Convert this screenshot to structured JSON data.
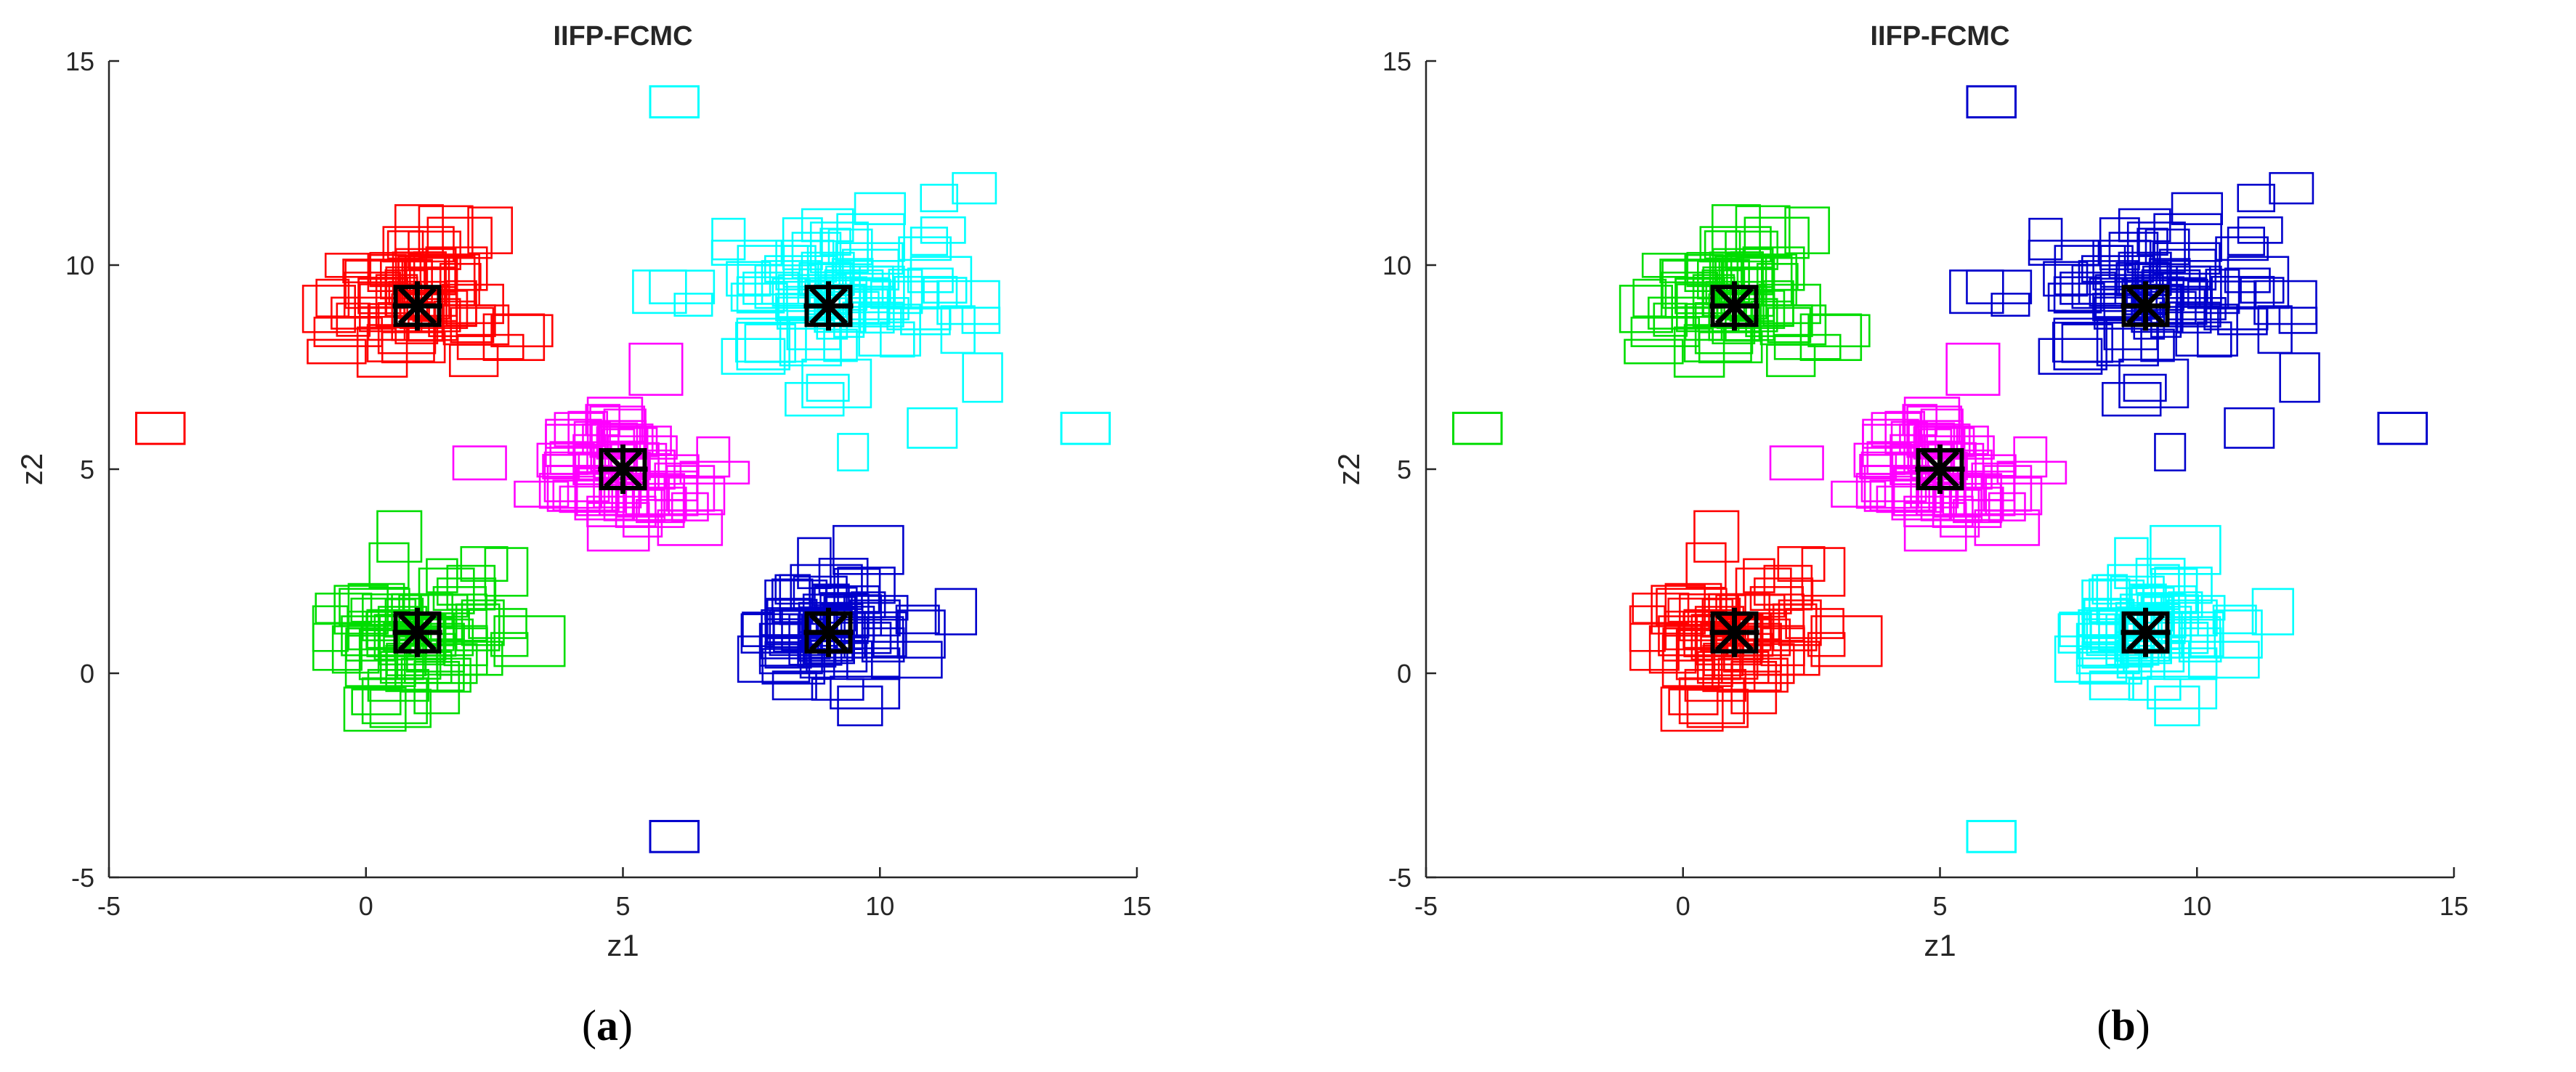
{
  "captions": {
    "a_open": "(",
    "a_letter": "a",
    "a_close": ")",
    "b_open": "(",
    "b_letter": "b",
    "b_close": ")"
  },
  "chart_data": [
    {
      "type": "scatter",
      "title": "IIFP-FCMC",
      "xlabel": "z1",
      "ylabel": "z2",
      "xlim": [
        -5,
        15
      ],
      "ylim": [
        -5,
        15
      ],
      "xticks": [
        "-5",
        "0",
        "5",
        "10",
        "15"
      ],
      "yticks": [
        "-5",
        "0",
        "5",
        "10",
        "15"
      ],
      "grid": false,
      "marker": "interval-rectangle",
      "clusters": [
        {
          "color": "#ff0000",
          "center": [
            1,
            9
          ],
          "spread": [
            0.9,
            0.8
          ],
          "points": 60
        },
        {
          "color": "#00ffff",
          "center": [
            9,
            9
          ],
          "spread": [
            1.3,
            1.1
          ],
          "points": 80
        },
        {
          "color": "#ff00ff",
          "center": [
            5,
            5
          ],
          "spread": [
            0.8,
            0.8
          ],
          "points": 60
        },
        {
          "color": "#00dd00",
          "center": [
            1,
            1
          ],
          "spread": [
            0.9,
            0.8
          ],
          "points": 60
        },
        {
          "color": "#0000cc",
          "center": [
            9,
            1
          ],
          "spread": [
            0.9,
            0.8
          ],
          "points": 60
        }
      ],
      "outliers": [
        {
          "color": "#00ffff",
          "x": 6,
          "y": 14
        },
        {
          "color": "#ff0000",
          "x": -4,
          "y": 6
        },
        {
          "color": "#00ffff",
          "x": 14,
          "y": 6
        },
        {
          "color": "#0000cc",
          "x": 6,
          "y": -4
        }
      ],
      "prototypes": [
        [
          1,
          9
        ],
        [
          9,
          9
        ],
        [
          5,
          5
        ],
        [
          1,
          1
        ],
        [
          9,
          1
        ]
      ],
      "prototype_color": "#000000"
    },
    {
      "type": "scatter",
      "title": "IIFP-FCMC",
      "xlabel": "z1",
      "ylabel": "z2",
      "xlim": [
        -5,
        15
      ],
      "ylim": [
        -5,
        15
      ],
      "xticks": [
        "-5",
        "0",
        "5",
        "10",
        "15"
      ],
      "yticks": [
        "-5",
        "0",
        "5",
        "10",
        "15"
      ],
      "grid": false,
      "marker": "interval-rectangle",
      "clusters": [
        {
          "color": "#00dd00",
          "center": [
            1,
            9
          ],
          "spread": [
            0.9,
            0.8
          ],
          "points": 60
        },
        {
          "color": "#0000cc",
          "center": [
            9,
            9
          ],
          "spread": [
            1.3,
            1.1
          ],
          "points": 80
        },
        {
          "color": "#ff00ff",
          "center": [
            5,
            5
          ],
          "spread": [
            0.8,
            0.8
          ],
          "points": 60
        },
        {
          "color": "#ff0000",
          "center": [
            1,
            1
          ],
          "spread": [
            0.9,
            0.8
          ],
          "points": 60
        },
        {
          "color": "#00ffff",
          "center": [
            9,
            1
          ],
          "spread": [
            0.9,
            0.8
          ],
          "points": 60
        }
      ],
      "outliers": [
        {
          "color": "#0000cc",
          "x": 6,
          "y": 14
        },
        {
          "color": "#00dd00",
          "x": -4,
          "y": 6
        },
        {
          "color": "#0000cc",
          "x": 14,
          "y": 6
        },
        {
          "color": "#00ffff",
          "x": 6,
          "y": -4
        }
      ],
      "prototypes": [
        [
          1,
          9
        ],
        [
          9,
          9
        ],
        [
          5,
          5
        ],
        [
          1,
          1
        ],
        [
          9,
          1
        ]
      ],
      "prototype_color": "#000000"
    }
  ]
}
